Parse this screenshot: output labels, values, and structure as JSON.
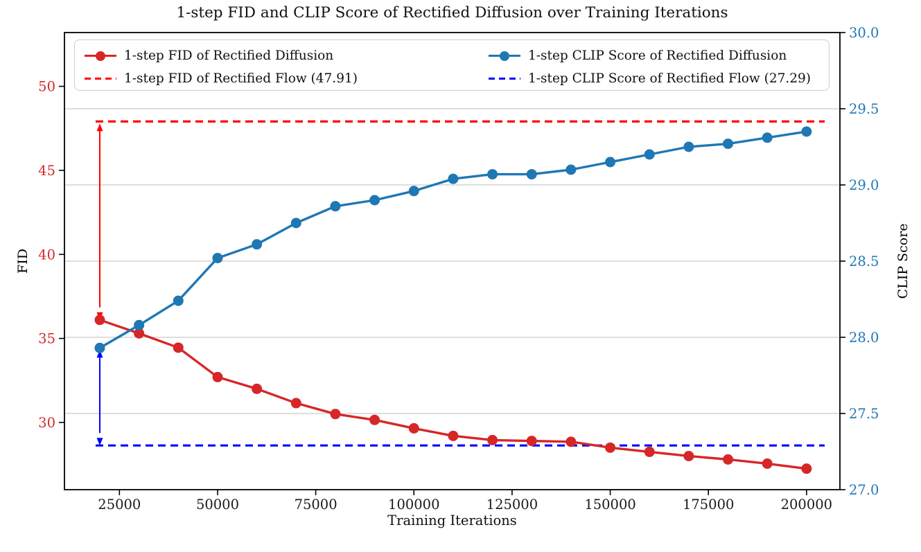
{
  "title": "1-step FID and CLIP Score of Rectified Diffusion over Training Iterations",
  "colors": {
    "fid_series": "#d62728",
    "fid_baseline": "#ff0000",
    "clip_series": "#1f77b4",
    "clip_baseline": "#0000ff",
    "grid": "#c9c9c9",
    "spine": "#000000",
    "x_tick_label": "#1a1a1a",
    "background": "#ffffff"
  },
  "axes": {
    "x": {
      "label": "Training Iterations",
      "ticks": [
        25000,
        50000,
        75000,
        100000,
        125000,
        150000,
        175000,
        200000
      ],
      "lim": [
        11000,
        208500
      ]
    },
    "y_left": {
      "label": "FID",
      "ticks": [
        30,
        35,
        40,
        45,
        50
      ],
      "lim": [
        26.0,
        53.2
      ],
      "color": "#d62728"
    },
    "y_right": {
      "label": "CLIP Score",
      "ticks": [
        "27.0",
        "27.5",
        "28.0",
        "28.5",
        "29.0",
        "29.5",
        "30.0"
      ],
      "lim": [
        27.0,
        30.0
      ],
      "color": "#1f77b4",
      "grid": true
    }
  },
  "legend": {
    "entries": [
      {
        "label": "1-step FID of Rectified Diffusion",
        "style": "solid-marker",
        "color": "#d62728"
      },
      {
        "label": "1-step FID of Rectified Flow (47.91)",
        "style": "dashed",
        "color": "#ff0000"
      },
      {
        "label": "1-step CLIP Score of Rectified Diffusion",
        "style": "solid-marker",
        "color": "#1f77b4"
      },
      {
        "label": "1-step CLIP Score of Rectified Flow (27.29)",
        "style": "dashed",
        "color": "#0000ff"
      }
    ]
  },
  "chart_data": {
    "type": "line",
    "x": [
      20000,
      30000,
      40000,
      50000,
      60000,
      70000,
      80000,
      90000,
      100000,
      110000,
      120000,
      130000,
      140000,
      150000,
      160000,
      170000,
      180000,
      190000,
      200000
    ],
    "series": [
      {
        "name": "1-step FID of Rectified Diffusion",
        "axis": "left",
        "color": "#d62728",
        "marker": "circle",
        "values": [
          36.1,
          35.3,
          34.45,
          32.7,
          32.0,
          31.15,
          30.5,
          30.15,
          29.65,
          29.2,
          28.95,
          28.9,
          28.85,
          28.5,
          28.25,
          28.0,
          27.8,
          27.55,
          27.25
        ]
      },
      {
        "name": "1-step CLIP Score of Rectified Diffusion",
        "axis": "right",
        "color": "#1f77b4",
        "marker": "circle",
        "values": [
          27.93,
          28.08,
          28.24,
          28.52,
          28.61,
          28.75,
          28.86,
          28.9,
          28.96,
          29.04,
          29.07,
          29.07,
          29.1,
          29.15,
          29.2,
          29.25,
          29.27,
          29.31,
          29.35
        ]
      }
    ],
    "baselines": [
      {
        "name": "1-step FID of Rectified Flow",
        "axis": "left",
        "value": 47.91,
        "color": "#ff0000",
        "style": "dashed"
      },
      {
        "name": "1-step CLIP Score of Rectified Flow",
        "axis": "right",
        "value": 27.29,
        "color": "#0000ff",
        "style": "dashed"
      }
    ],
    "annotations": [
      {
        "type": "double-arrow",
        "x": 20000,
        "axis": "left",
        "from": 47.91,
        "to": 36.1,
        "color": "#ff0000"
      },
      {
        "type": "double-arrow",
        "x": 20000,
        "axis": "right",
        "from": 27.93,
        "to": 27.29,
        "color": "#0000ff"
      }
    ],
    "legend_position": "upper center, 2 columns",
    "xlabel": "Training Iterations",
    "ylabel_left": "FID",
    "ylabel_right": "CLIP Score"
  }
}
